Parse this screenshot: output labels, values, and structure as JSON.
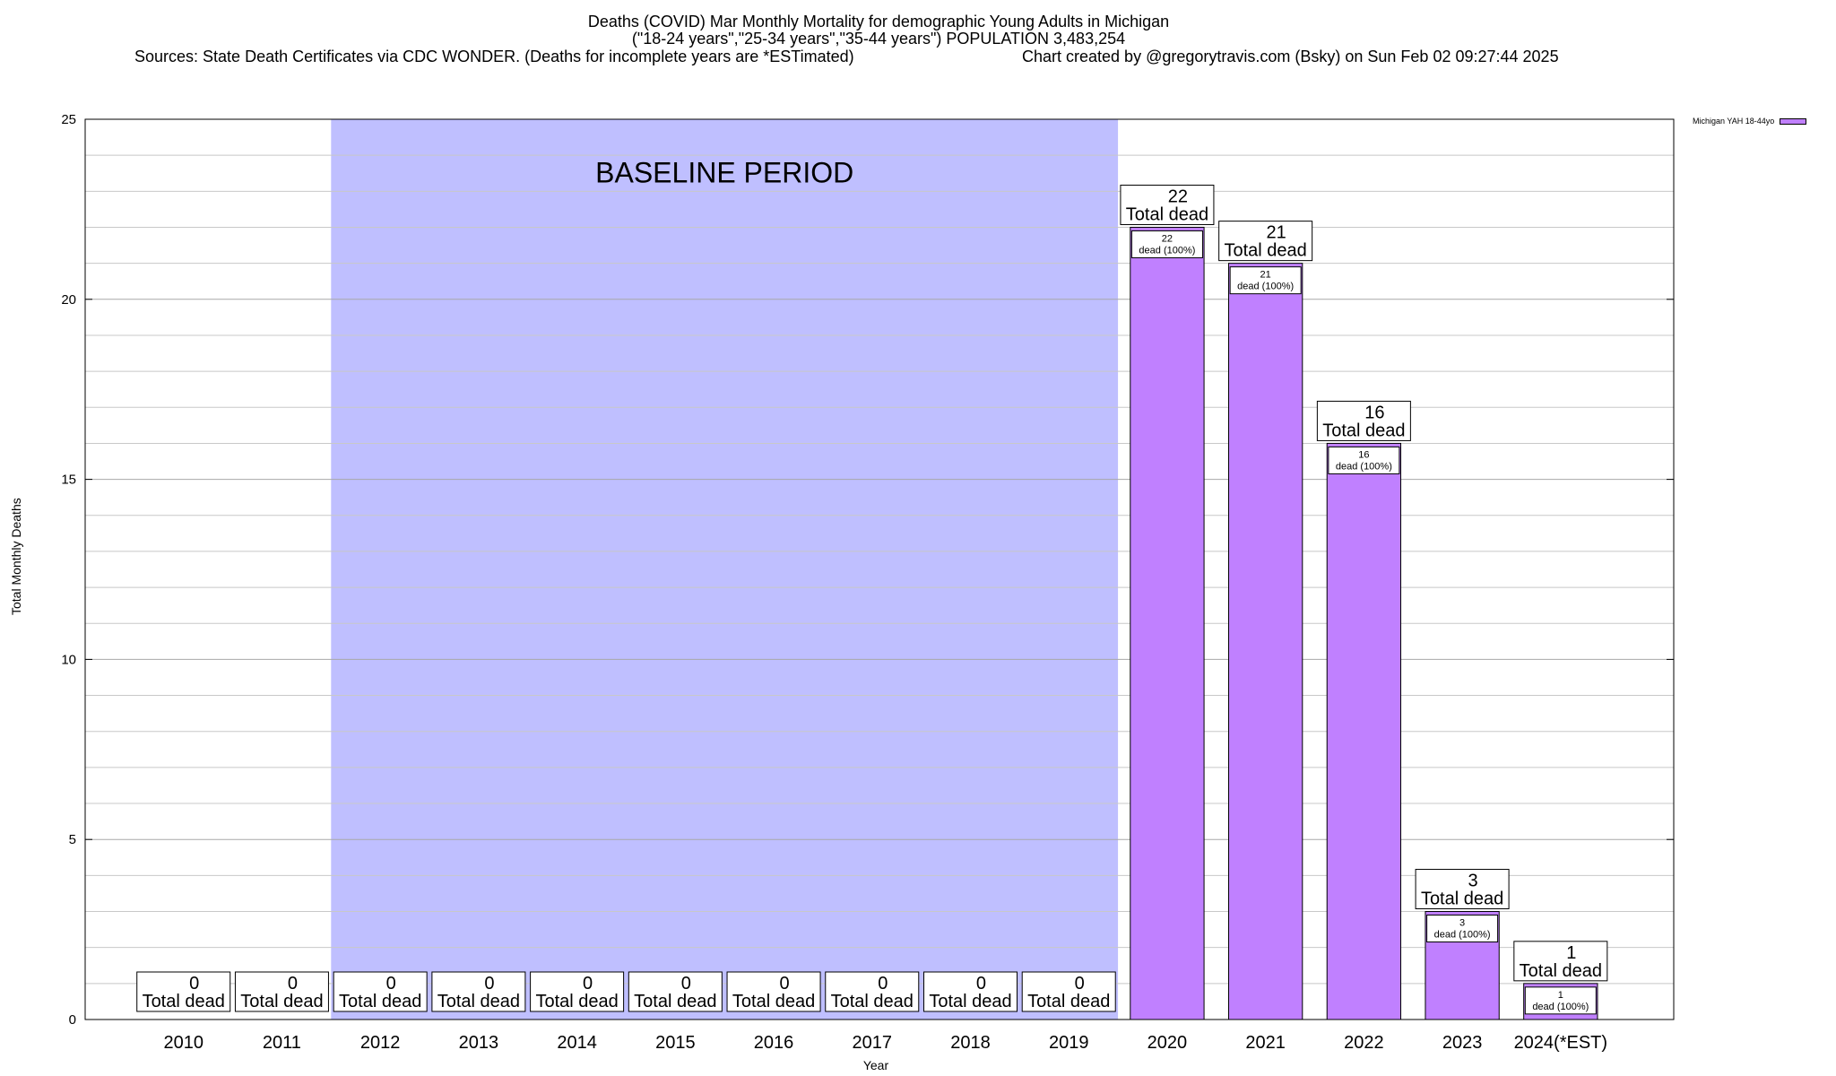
{
  "chart_data": {
    "type": "bar",
    "title_lines": [
      "Deaths (COVID) Mar Monthly Mortality for demographic Young Adults in Michigan",
      "(\"18-24 years\",\"25-34 years\",\"35-44 years\") POPULATION 3,483,254"
    ],
    "source": "Sources: State Death Certificates via CDC WONDER. (Deaths for incomplete years are *ESTimated)",
    "credit": "Chart created by @gregorytravis.com (Bsky) on Sun Feb 02 09:27:44 2025",
    "xlabel": "Year",
    "ylabel": "Total Monthly Deaths",
    "ylim": [
      0,
      25
    ],
    "yticks": [
      0,
      5,
      10,
      15,
      20,
      25
    ],
    "grid": true,
    "categories": [
      "2010",
      "2011",
      "2012",
      "2013",
      "2014",
      "2015",
      "2016",
      "2017",
      "2018",
      "2019",
      "2020",
      "2021",
      "2022",
      "2023",
      "2024(*EST)"
    ],
    "series": [
      {
        "name": "Michigan YAH 18-44yo",
        "color": "#c080ff",
        "values": [
          0,
          0,
          0,
          0,
          0,
          0,
          0,
          0,
          0,
          0,
          22,
          21,
          16,
          3,
          1
        ]
      }
    ],
    "total_label": "Total dead",
    "inner_label": "dead (100%)",
    "baseline": {
      "label": "BASELINE PERIOD",
      "from": "2012",
      "to": "2019",
      "color": "#bfbfff"
    },
    "legend_position": "top-right"
  }
}
